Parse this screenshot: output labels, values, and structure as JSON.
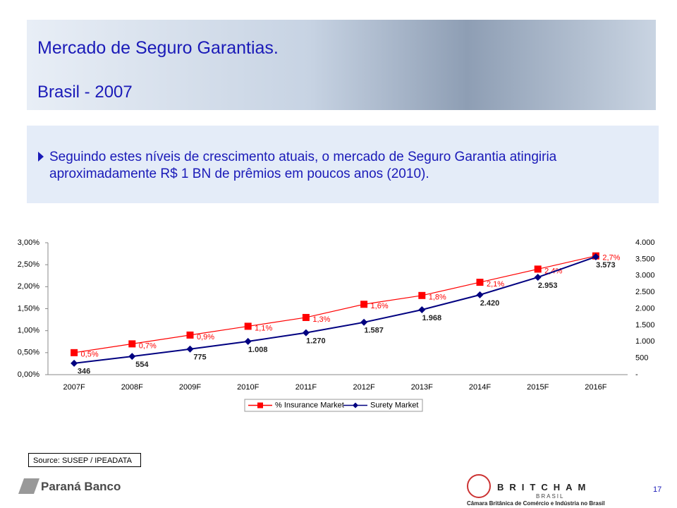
{
  "header": {
    "title": "Mercado de Seguro Garantias.",
    "subtitle": "Brasil - 2007"
  },
  "bullet": "Seguindo estes níveis de crescimento atuais, o mercado de Seguro Garantia atingiria aproximadamente R$ 1 BN de prêmios em poucos anos (2010).",
  "chart_data": {
    "type": "line",
    "categories": [
      "2007F",
      "2008F",
      "2009F",
      "2010F",
      "2011F",
      "2012F",
      "2013F",
      "2014F",
      "2015F",
      "2016F"
    ],
    "series": [
      {
        "name": "% Insurance Market",
        "color": "#ff0000",
        "marker": "square",
        "values": [
          0.5,
          0.7,
          0.9,
          1.1,
          1.3,
          1.6,
          1.8,
          2.1,
          2.4,
          2.7
        ],
        "value_labels": [
          "0,5%",
          "0,7%",
          "0,9%",
          "1,1%",
          "1,3%",
          "1,6%",
          "1,8%",
          "2,1%",
          "2,4%",
          "2,7%"
        ]
      },
      {
        "name": "Surety Market",
        "color": "#000080",
        "marker": "diamond",
        "axis": "y2",
        "values": [
          346,
          554,
          775,
          1008,
          1270,
          1587,
          1968,
          2420,
          2953,
          3573
        ],
        "value_labels": [
          "346",
          "554",
          "775",
          "1.008",
          "1.270",
          "1.587",
          "1.968",
          "2.420",
          "2.953",
          "3.573"
        ]
      }
    ],
    "ylim": [
      0,
      3
    ],
    "yticks": [
      {
        "value": 0,
        "label": "0,00%"
      },
      {
        "value": 0.5,
        "label": "0,50%"
      },
      {
        "value": 1,
        "label": "1,00%"
      },
      {
        "value": 1.5,
        "label": "1,50%"
      },
      {
        "value": 2,
        "label": "2,00%"
      },
      {
        "value": 2.5,
        "label": "2,50%"
      },
      {
        "value": 3,
        "label": "3,00%"
      }
    ],
    "y2lim": [
      0,
      4000
    ],
    "y2ticks": [
      {
        "value": 0,
        "label": "-"
      },
      500,
      {
        "value": 1000,
        "label": "1.000"
      },
      {
        "value": 1500,
        "label": "1.500"
      },
      {
        "value": 2000,
        "label": "2.000"
      },
      {
        "value": 2500,
        "label": "2.500"
      },
      {
        "value": 3000,
        "label": "3.000"
      },
      {
        "value": 3500,
        "label": "3.500"
      },
      {
        "value": 4000,
        "label": "4.000"
      }
    ],
    "grid": false,
    "legend": "bottom"
  },
  "source": "Source: SUSEP / IPEADATA",
  "footer": {
    "bank": "Paraná Banco",
    "britcham": "BRITCHAM",
    "britcham_sub": "BRASIL",
    "britcham_caption": "Câmara Britânica de Comércio e Indústria no Brasil",
    "page": "17"
  }
}
